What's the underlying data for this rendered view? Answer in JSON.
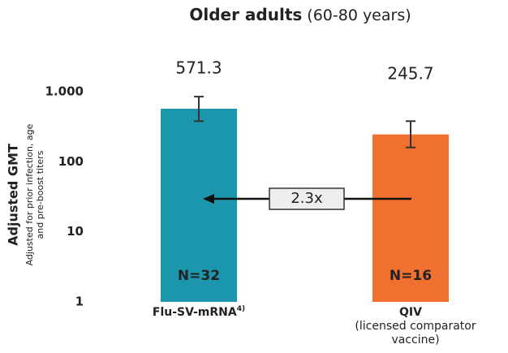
{
  "chart_data": {
    "type": "bar",
    "title": "Older adults",
    "subtitle": "(60-80 years)",
    "y_label": "Adjusted GMT",
    "y_sublabel": [
      "Adjusted for prior infection, age",
      "and pre-boost titers"
    ],
    "categories": [
      "Flu-SV-mRNA",
      "QIV"
    ],
    "category_superscript": "4)",
    "category_sublabel": "(licensed comparator vaccine)",
    "values": [
      571.3,
      245.7
    ],
    "value_labels": [
      "571.3",
      "245.7"
    ],
    "error_lower": [
      380,
      160
    ],
    "error_upper": [
      850,
      380
    ],
    "colors": [
      "#1b96ad",
      "#f07030"
    ],
    "n_labels": [
      "N=32",
      "N=16"
    ],
    "ratio_annotation": "2.3x",
    "log_scale": true,
    "ylim": [
      1,
      1000
    ],
    "yticks": [
      {
        "value": 1000,
        "label": "1.000"
      },
      100,
      10,
      1
    ],
    "grid": false
  }
}
